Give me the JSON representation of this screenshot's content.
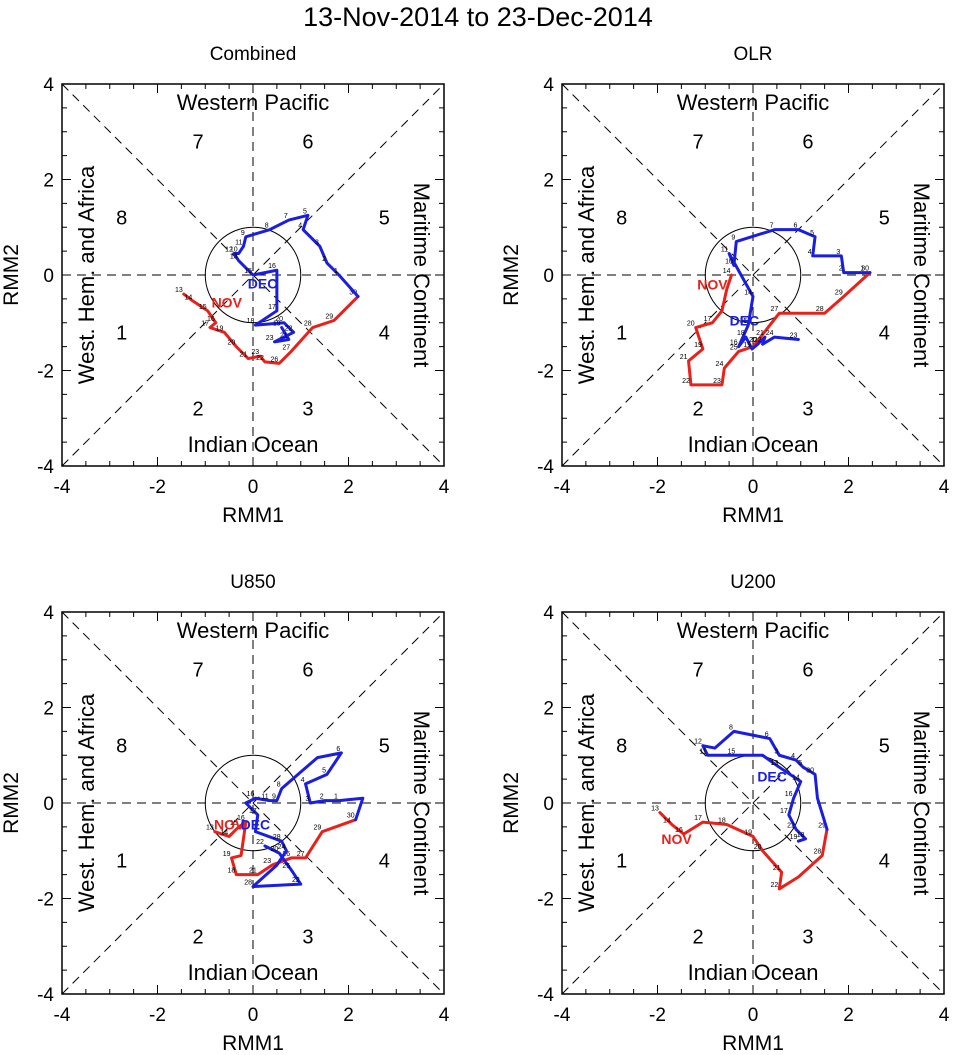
{
  "title": "13-Nov-2014 to 23-Dec-2014",
  "colors": {
    "nov": "#e8211b",
    "dec": "#1a1ee0",
    "axis": "#000000"
  },
  "axes": {
    "xlabel": "RMM1",
    "ylabel": "RMM2",
    "xlim": [
      -4,
      4
    ],
    "ylim": [
      -4,
      4
    ],
    "ticks": [
      -4,
      -2,
      0,
      2,
      4
    ],
    "tick_labels": [
      "-4",
      "-2",
      "0",
      "2",
      "4"
    ]
  },
  "regions": {
    "top": "Western Pacific",
    "bottom": "Indian Ocean",
    "left": "West. Hem. and Africa",
    "right": "Maritime Continent"
  },
  "phases": [
    "1",
    "2",
    "3",
    "4",
    "5",
    "6",
    "7",
    "8"
  ],
  "chart_data": [
    {
      "type": "line",
      "title": "Combined",
      "series": [
        {
          "name": "NOV",
          "label_at": [
            -0.55,
            -0.58
          ],
          "points": [
            [
              -1.45,
              -0.4,
              "13"
            ],
            [
              -1.25,
              -0.55,
              "14"
            ],
            [
              -0.95,
              -0.75,
              "15"
            ],
            [
              -0.78,
              -1.0,
              "16"
            ],
            [
              -0.9,
              -1.1,
              "17"
            ],
            [
              -0.6,
              -1.2,
              "19"
            ],
            [
              -0.35,
              -1.5,
              "20"
            ],
            [
              -0.1,
              -1.75,
              "21"
            ],
            [
              0.15,
              -1.7,
              "23"
            ],
            [
              0.25,
              -1.82,
              "22"
            ],
            [
              0.55,
              -1.85,
              "26"
            ],
            [
              0.8,
              -1.6,
              "27"
            ],
            [
              1.25,
              -1.1,
              "28"
            ],
            [
              1.7,
              -0.95,
              "29"
            ],
            [
              2.2,
              -0.45,
              "30"
            ]
          ]
        },
        {
          "name": "DEC",
          "label_at": [
            0.2,
            -0.18
          ],
          "points": [
            [
              2.2,
              -0.45,
              ""
            ],
            [
              1.8,
              0.0,
              "1"
            ],
            [
              1.55,
              0.25,
              "2"
            ],
            [
              1.4,
              0.6,
              "3"
            ],
            [
              1.05,
              0.95,
              "4"
            ],
            [
              1.15,
              1.25,
              "5"
            ],
            [
              0.75,
              1.15,
              "7"
            ],
            [
              0.35,
              0.95,
              "8"
            ],
            [
              -0.15,
              0.8,
              "9"
            ],
            [
              -0.2,
              0.6,
              "11"
            ],
            [
              -0.3,
              0.45,
              "10"
            ],
            [
              -0.4,
              0.45,
              "12"
            ],
            [
              -0.3,
              0.3,
              "13"
            ],
            [
              0.0,
              0.0,
              "15"
            ],
            [
              0.5,
              0.1,
              "16"
            ],
            [
              0.5,
              -0.75,
              "17"
            ],
            [
              0.05,
              -1.05,
              "18"
            ],
            [
              0.65,
              -1.0,
              "20"
            ],
            [
              0.85,
              -1.2,
              "22"
            ],
            [
              0.45,
              -1.4,
              "23"
            ],
            [
              0.75,
              -1.35,
              "21"
            ],
            [
              0.6,
              -1.1,
              "19"
            ]
          ]
        }
      ]
    },
    {
      "type": "line",
      "title": "OLR",
      "series": [
        {
          "name": "NOV",
          "label_at": [
            -0.85,
            -0.2
          ],
          "points": [
            [
              -0.45,
              0.0,
              "14"
            ],
            [
              -0.55,
              -0.3,
              ""
            ],
            [
              -0.65,
              -0.75,
              ""
            ],
            [
              -0.85,
              -1.0,
              "17"
            ],
            [
              -1.2,
              -1.1,
              "20"
            ],
            [
              -1.05,
              -1.55,
              "19"
            ],
            [
              -1.35,
              -1.8,
              "21"
            ],
            [
              -1.3,
              -2.3,
              "22"
            ],
            [
              -0.65,
              -2.3,
              "23"
            ],
            [
              -0.6,
              -1.95,
              "24"
            ],
            [
              -0.3,
              -1.6,
              "25"
            ],
            [
              0.0,
              -1.5,
              ""
            ],
            [
              0.55,
              -0.8,
              "27"
            ],
            [
              1.5,
              -0.8,
              "28"
            ],
            [
              1.9,
              -0.45,
              "29"
            ],
            [
              2.45,
              0.05,
              "30"
            ]
          ]
        },
        {
          "name": "DEC",
          "label_at": [
            -0.18,
            -0.95
          ],
          "points": [
            [
              2.45,
              0.05,
              ""
            ],
            [
              2.35,
              0.05,
              "1"
            ],
            [
              1.9,
              0.05,
              "2"
            ],
            [
              1.85,
              0.4,
              "3"
            ],
            [
              1.25,
              0.4,
              "4"
            ],
            [
              1.3,
              0.8,
              "5"
            ],
            [
              0.95,
              0.95,
              "6"
            ],
            [
              0.45,
              0.95,
              "7"
            ],
            [
              -0.35,
              0.7,
              "9"
            ],
            [
              -0.4,
              0.2,
              "10"
            ],
            [
              -0.5,
              0.45,
              "11"
            ],
            [
              0.0,
              -0.45,
              "14"
            ],
            [
              -0.1,
              -1.05,
              "15"
            ],
            [
              -0.3,
              -1.5,
              "16"
            ],
            [
              -0.15,
              -1.3,
              "18"
            ],
            [
              -0.02,
              -1.55,
              "19"
            ],
            [
              0.1,
              -1.45,
              "20"
            ],
            [
              0.25,
              -1.3,
              "21"
            ],
            [
              0.2,
              -1.45,
              "22"
            ],
            [
              0.45,
              -1.3,
              "24"
            ],
            [
              0.95,
              -1.35,
              "23"
            ]
          ]
        }
      ]
    },
    {
      "type": "line",
      "title": "U850",
      "series": [
        {
          "name": "NOV",
          "label_at": [
            -0.5,
            -0.45
          ],
          "points": [
            [
              -0.8,
              -0.6,
              "13"
            ],
            [
              -0.5,
              -0.7,
              "14"
            ],
            [
              -0.3,
              -0.5,
              "15"
            ],
            [
              -0.15,
              -0.4,
              "16"
            ],
            [
              -0.25,
              -1.1,
              ""
            ],
            [
              -0.45,
              -1.15,
              "19"
            ],
            [
              -0.35,
              -1.5,
              "18"
            ],
            [
              0.1,
              -1.5,
              "21"
            ],
            [
              0.4,
              -1.3,
              "23"
            ],
            [
              0.8,
              -1.15,
              "26"
            ],
            [
              1.1,
              -1.15,
              "27"
            ],
            [
              1.45,
              -0.6,
              "29"
            ],
            [
              2.15,
              -0.35,
              "30"
            ]
          ]
        },
        {
          "name": "DEC",
          "label_at": [
            0.05,
            -0.45
          ],
          "points": [
            [
              2.15,
              -0.35,
              ""
            ],
            [
              2.3,
              0.1,
              ""
            ],
            [
              1.8,
              0.05,
              "1"
            ],
            [
              1.5,
              0.05,
              "2"
            ],
            [
              1.2,
              0.0,
              "3"
            ],
            [
              1.1,
              0.4,
              "4"
            ],
            [
              1.55,
              0.6,
              "5"
            ],
            [
              1.85,
              1.05,
              "6"
            ],
            [
              1.35,
              0.95,
              ""
            ],
            [
              1.0,
              0.65,
              ""
            ],
            [
              0.6,
              0.3,
              "8"
            ],
            [
              0.5,
              0.05,
              "9"
            ],
            [
              0.35,
              0.05,
              "11"
            ],
            [
              0.05,
              0.1,
              "16"
            ],
            [
              -0.15,
              0.0,
              ""
            ],
            [
              0.1,
              -0.25,
              "17"
            ],
            [
              0.05,
              -0.6,
              ""
            ],
            [
              0.6,
              -0.8,
              "28"
            ],
            [
              0.7,
              -1.0,
              "24"
            ],
            [
              0.5,
              -1.3,
              ""
            ],
            [
              0.0,
              -1.75,
              "28"
            ],
            [
              1.0,
              -1.7,
              "22"
            ],
            [
              0.8,
              -1.4,
              "25"
            ],
            [
              0.55,
              -1.05,
              "20"
            ],
            [
              0.25,
              -0.9,
              "22"
            ]
          ]
        }
      ]
    },
    {
      "type": "line",
      "title": "U200",
      "series": [
        {
          "name": "NOV",
          "label_at": [
            -1.6,
            -0.75
          ],
          "points": [
            [
              -1.95,
              -0.2,
              "13"
            ],
            [
              -1.7,
              -0.45,
              "14"
            ],
            [
              -1.45,
              -0.65,
              "16"
            ],
            [
              -1.05,
              -0.4,
              "17"
            ],
            [
              -0.55,
              -0.45,
              "18"
            ],
            [
              0.0,
              -0.7,
              "19"
            ],
            [
              0.2,
              -1.0,
              "20"
            ],
            [
              0.6,
              -1.45,
              "21"
            ],
            [
              0.55,
              -1.8,
              "22"
            ],
            [
              0.95,
              -1.55,
              ""
            ],
            [
              1.45,
              -1.1,
              "28"
            ],
            [
              1.55,
              -0.55,
              "29"
            ]
          ]
        },
        {
          "name": "DEC",
          "label_at": [
            0.4,
            0.55
          ],
          "points": [
            [
              1.55,
              -0.55,
              ""
            ],
            [
              1.35,
              0.1,
              ""
            ],
            [
              1.3,
              0.6,
              "30"
            ],
            [
              1.05,
              0.75,
              "5"
            ],
            [
              0.9,
              0.9,
              "4"
            ],
            [
              0.55,
              1.0,
              "3"
            ],
            [
              0.35,
              1.35,
              "6"
            ],
            [
              -0.4,
              1.5,
              "8"
            ],
            [
              -0.8,
              1.15,
              ""
            ],
            [
              -1.05,
              1.2,
              "12"
            ],
            [
              -0.95,
              1.0,
              "11"
            ],
            [
              -0.35,
              1.0,
              "15"
            ],
            [
              0.2,
              1.0,
              ""
            ],
            [
              0.55,
              0.75,
              "13"
            ],
            [
              1.0,
              0.45,
              "14"
            ],
            [
              0.85,
              0.1,
              "16"
            ],
            [
              0.75,
              -0.25,
              "17"
            ],
            [
              0.9,
              -0.55,
              "22"
            ],
            [
              1.1,
              -0.75,
              "18"
            ],
            [
              0.95,
              -0.8,
              "19"
            ]
          ]
        }
      ]
    }
  ]
}
